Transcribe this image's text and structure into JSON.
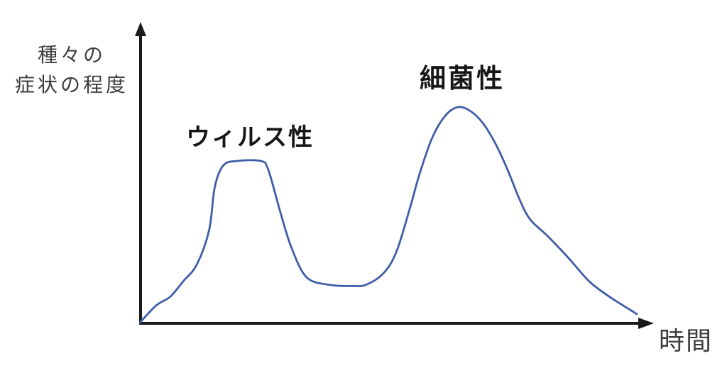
{
  "colors": {
    "curve": "#3f5ea7",
    "axis": "#1a1a1a",
    "label_text": "#3d3d3d",
    "peak_label_text": "#161616",
    "background": "#ffffff"
  },
  "labels": {
    "y_axis_line1": "種々の",
    "y_axis_line2": "症状の程度",
    "x_axis": "時間",
    "peak1": "ウィルス性",
    "peak2": "細菌性"
  },
  "chart_data": {
    "type": "line",
    "title": "",
    "xlabel": "時間",
    "ylabel": "種々の症状の程度",
    "xlim": [
      0,
      100
    ],
    "ylim": [
      0,
      10
    ],
    "grid": false,
    "legend": "none",
    "axes_style": "arrow-ended, no ticks, qualitative",
    "annotations": [
      {
        "text": "ウィルス性",
        "meaning": "viral",
        "near_peak_x": 20.5,
        "near_peak_y": 7.5
      },
      {
        "text": "細菌性",
        "meaning": "bacterial",
        "near_peak_x": 62,
        "near_peak_y": 10
      }
    ],
    "series": [
      {
        "name": "症状の程度",
        "color": "#3f5ea7",
        "points": [
          [
            0,
            0
          ],
          [
            3.2,
            0.8
          ],
          [
            5.9,
            1.2
          ],
          [
            8.4,
            1.9
          ],
          [
            11.1,
            2.7
          ],
          [
            13.5,
            4.3
          ],
          [
            14.6,
            6.3
          ],
          [
            16.3,
            7.3
          ],
          [
            19,
            7.5
          ],
          [
            23.5,
            7.5
          ],
          [
            25,
            7.1
          ],
          [
            27.4,
            5.1
          ],
          [
            29.5,
            3.5
          ],
          [
            32.5,
            2.1
          ],
          [
            37,
            1.75
          ],
          [
            41,
            1.7
          ],
          [
            44,
            1.75
          ],
          [
            47.5,
            2.3
          ],
          [
            50,
            3.3
          ],
          [
            52.6,
            5.3
          ],
          [
            54.5,
            6.9
          ],
          [
            57,
            8.6
          ],
          [
            59.5,
            9.6
          ],
          [
            62,
            10
          ],
          [
            64.5,
            9.8
          ],
          [
            67,
            9.2
          ],
          [
            69.5,
            8.2
          ],
          [
            71.8,
            7.0
          ],
          [
            74,
            5.7
          ],
          [
            76,
            4.8
          ],
          [
            79.5,
            4.0
          ],
          [
            83.5,
            3.0
          ],
          [
            87.6,
            1.9
          ],
          [
            91.5,
            1.2
          ],
          [
            96.8,
            0.4
          ]
        ]
      }
    ]
  }
}
